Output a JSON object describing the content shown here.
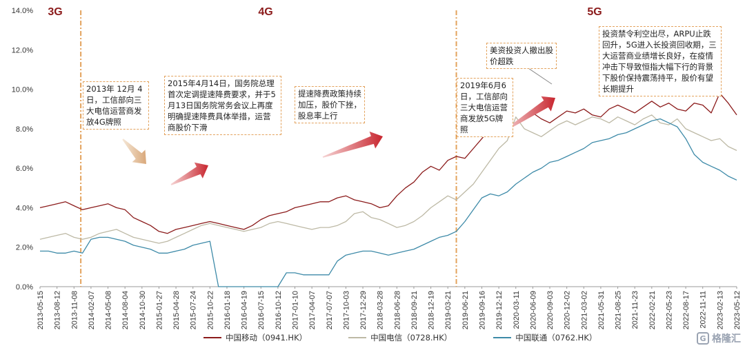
{
  "chart_data": {
    "type": "line",
    "title": "",
    "ylim": [
      0,
      14
    ],
    "y_ticks": [
      "0.0%",
      "2.0%",
      "4.0%",
      "6.0%",
      "8.0%",
      "10.0%",
      "12.0%",
      "14.0%"
    ],
    "y_tick_values": [
      0,
      2,
      4,
      6,
      8,
      10,
      12,
      14
    ],
    "x_ticks": [
      "2013-05-15",
      "2013-08-12",
      "2013-11-08",
      "2014-02-07",
      "2014-05-08",
      "2014-08-04",
      "2014-10-30",
      "2015-01-27",
      "2015-04-28",
      "2015-07-24",
      "2015-10-22",
      "2016-01-18",
      "2016-04-19",
      "2016-07-15",
      "2016-10-12",
      "2017-01-10",
      "2017-04-07",
      "2017-07-07",
      "2017-10-03",
      "2017-12-29",
      "2018-03-28",
      "2018-06-28",
      "2018-09-21",
      "2018-12-19",
      "2019-03-21",
      "2019-06-21",
      "2019-09-16",
      "2019-12-12",
      "2020-03-11",
      "2020-06-09",
      "2020-09-03",
      "2020-12-02",
      "2021-03-02",
      "2021-05-31",
      "2021-08-25",
      "2021-11-23",
      "2022-02-21",
      "2022-05-23",
      "2022-08-17",
      "2022-11-11",
      "2023-02-13",
      "2023-05-12"
    ],
    "eras": [
      {
        "label": "3G",
        "start_index": 0
      },
      {
        "label": "4G",
        "start_index": 2.4
      },
      {
        "label": "5G",
        "start_index": 24.5
      }
    ],
    "annotations": [
      {
        "text": "2013年 12月 4日，工信部向三大电信运营商发放4G牌照"
      },
      {
        "text": "2015年4月14日，国务院总理首次定调提速降费要求，并于5月13日国务院常务会议上再度明确提速降费具体举措，运营商股价下滑"
      },
      {
        "text": "提速降费政策持续加压，股价下挫，股息率上行"
      },
      {
        "text": "2019年6月6日，工信部向三大电信运营商发放5G牌照"
      },
      {
        "text": "美资投资人撤出股价超跌"
      },
      {
        "text": "投资禁令利空出尽，ARPU止跌回升，5G进入长投资回收期，三大运营商业绩增长良好，在疫情冲击下导致恒指大幅下行的背景下股价保持震荡持平，股价有望长期提升"
      }
    ],
    "series": [
      {
        "name": "中国移动（0941.HK）",
        "color": "#8b1a1a",
        "x": [
          0,
          0.5,
          1,
          1.5,
          2,
          2.5,
          3,
          3.5,
          4,
          4.5,
          5,
          5.5,
          6,
          6.5,
          7,
          7.5,
          8,
          8.5,
          9,
          9.5,
          10,
          10.5,
          11,
          11.5,
          12,
          12.5,
          13,
          13.5,
          14,
          14.5,
          15,
          15.5,
          16,
          16.5,
          17,
          17.5,
          18,
          18.5,
          19,
          19.5,
          20,
          20.5,
          21,
          21.5,
          22,
          22.5,
          23,
          23.5,
          24,
          24.5,
          25,
          25.5,
          26,
          26.5,
          27,
          27.5,
          28,
          28.5,
          29,
          29.5,
          30,
          30.5,
          31,
          31.5,
          32,
          32.5,
          33,
          33.5,
          34,
          34.5,
          35,
          35.5,
          36,
          36.5,
          37,
          37.5,
          38,
          38.5,
          39,
          39.5,
          40,
          40.5,
          41
        ],
        "values": [
          4.0,
          4.1,
          4.2,
          4.3,
          4.1,
          3.9,
          4.0,
          4.1,
          4.2,
          4.0,
          3.9,
          3.5,
          3.3,
          3.1,
          2.8,
          2.7,
          2.9,
          3.0,
          3.1,
          3.2,
          3.3,
          3.2,
          3.1,
          3.0,
          2.9,
          3.1,
          3.4,
          3.6,
          3.7,
          3.8,
          4.0,
          4.1,
          4.2,
          4.3,
          4.3,
          4.5,
          4.6,
          4.4,
          4.3,
          4.2,
          4.0,
          4.1,
          4.6,
          5.0,
          5.3,
          5.8,
          6.1,
          5.9,
          6.4,
          6.6,
          6.5,
          7.0,
          7.5,
          8.0,
          8.4,
          8.2,
          8.3,
          8.6,
          8.8,
          8.5,
          8.3,
          8.6,
          8.9,
          8.8,
          9.0,
          8.7,
          8.6,
          9.0,
          9.2,
          9.0,
          8.8,
          9.1,
          9.4,
          9.1,
          9.3,
          9.0,
          8.9,
          9.3,
          9.2,
          8.8,
          9.8,
          9.3,
          8.7
        ]
      },
      {
        "name": "中国电信（0728.HK）",
        "color": "#bdb9a5",
        "x": [
          0,
          0.5,
          1,
          1.5,
          2,
          2.5,
          3,
          3.5,
          4,
          4.5,
          5,
          5.5,
          6,
          6.5,
          7,
          7.5,
          8,
          8.5,
          9,
          9.5,
          10,
          10.5,
          11,
          11.5,
          12,
          12.5,
          13,
          13.5,
          14,
          14.5,
          15,
          15.5,
          16,
          16.5,
          17,
          17.5,
          18,
          18.5,
          19,
          19.5,
          20,
          20.5,
          21,
          21.5,
          22,
          22.5,
          23,
          23.5,
          24,
          24.5,
          25,
          25.5,
          26,
          26.5,
          27,
          27.5,
          28,
          28.5,
          29,
          29.5,
          30,
          30.5,
          31,
          31.5,
          32,
          32.5,
          33,
          33.5,
          34,
          34.5,
          35,
          35.5,
          36,
          36.5,
          37,
          37.5,
          38,
          38.5,
          39,
          39.5,
          40,
          40.5,
          41
        ],
        "values": [
          2.4,
          2.5,
          2.6,
          2.7,
          2.5,
          2.4,
          2.5,
          2.7,
          2.8,
          2.9,
          2.7,
          2.5,
          2.4,
          2.3,
          2.2,
          2.3,
          2.5,
          2.7,
          2.9,
          3.1,
          3.2,
          3.1,
          3.0,
          2.9,
          2.8,
          2.9,
          3.0,
          3.2,
          3.3,
          3.2,
          3.1,
          3.0,
          2.9,
          3.0,
          3.0,
          3.1,
          3.3,
          3.7,
          3.8,
          3.5,
          3.4,
          3.2,
          3.0,
          3.1,
          3.3,
          3.6,
          4.0,
          4.3,
          4.6,
          4.4,
          4.8,
          5.2,
          5.8,
          6.4,
          7.0,
          7.4,
          8.6,
          8.0,
          7.8,
          7.6,
          7.9,
          8.2,
          8.4,
          8.2,
          8.4,
          8.6,
          8.5,
          8.3,
          8.6,
          8.4,
          8.2,
          8.5,
          8.7,
          8.3,
          8.2,
          8.5,
          8.0,
          7.8,
          7.6,
          7.4,
          7.5,
          7.1,
          6.9
        ]
      },
      {
        "name": "中国联通（0762.HK）",
        "color": "#3d8aa8",
        "x": [
          0,
          0.5,
          1,
          1.5,
          2,
          2.5,
          3,
          3.5,
          4,
          4.5,
          5,
          5.5,
          6,
          6.5,
          7,
          7.5,
          8,
          8.5,
          9,
          9.5,
          10,
          10.5,
          11,
          11.5,
          12,
          12.5,
          13,
          13.5,
          14,
          14.5,
          15,
          15.5,
          16,
          16.5,
          17,
          17.5,
          18,
          18.5,
          19,
          19.5,
          20,
          20.5,
          21,
          21.5,
          22,
          22.5,
          23,
          23.5,
          24,
          24.5,
          25,
          25.5,
          26,
          26.5,
          27,
          27.5,
          28,
          28.5,
          29,
          29.5,
          30,
          30.5,
          31,
          31.5,
          32,
          32.5,
          33,
          33.5,
          34,
          34.5,
          35,
          35.5,
          36,
          36.5,
          37,
          37.5,
          38,
          38.5,
          39,
          39.5,
          40,
          40.5,
          41
        ],
        "values": [
          1.8,
          1.8,
          1.7,
          1.7,
          1.8,
          1.7,
          2.4,
          2.5,
          2.5,
          2.4,
          2.3,
          2.1,
          2.0,
          1.9,
          1.7,
          1.7,
          1.8,
          1.9,
          2.1,
          2.2,
          2.3,
          0.0,
          0.0,
          0.0,
          0.0,
          0.0,
          0.0,
          0.0,
          0.0,
          0.7,
          0.7,
          0.6,
          0.6,
          0.6,
          0.6,
          1.3,
          1.6,
          1.7,
          1.8,
          1.8,
          1.7,
          1.6,
          1.7,
          1.8,
          1.9,
          2.1,
          2.3,
          2.5,
          2.6,
          2.8,
          3.3,
          3.9,
          4.5,
          4.7,
          4.6,
          4.8,
          5.2,
          5.5,
          5.8,
          6.0,
          6.3,
          6.4,
          6.6,
          6.8,
          7.0,
          7.3,
          7.4,
          7.5,
          7.7,
          7.8,
          8.0,
          8.2,
          8.4,
          8.5,
          8.3,
          8.1,
          7.5,
          6.7,
          6.3,
          6.1,
          5.9,
          5.6,
          5.4
        ]
      }
    ]
  },
  "logo": {
    "text": "格隆汇",
    "mark": "G"
  }
}
